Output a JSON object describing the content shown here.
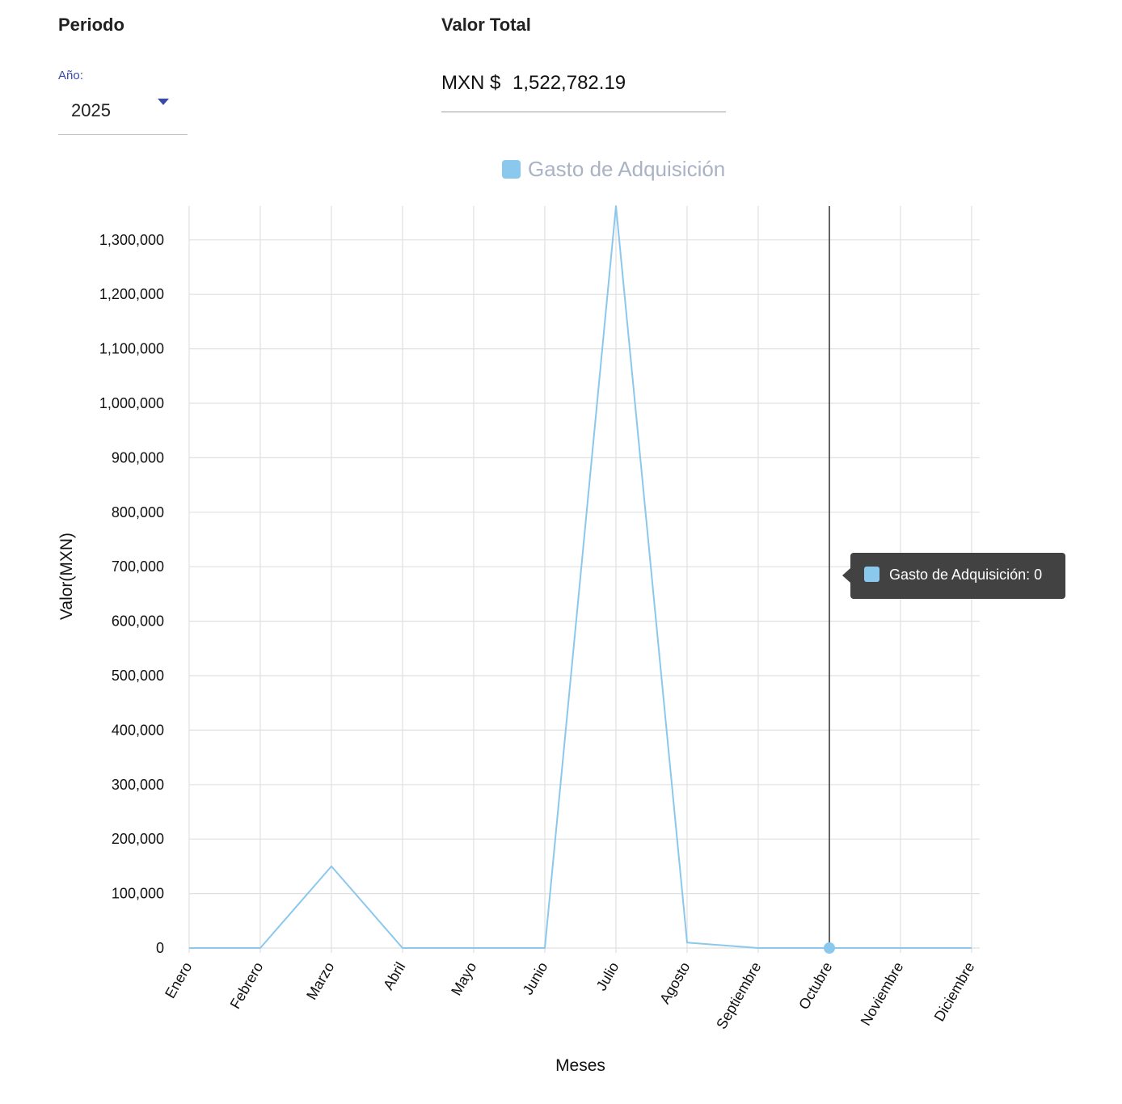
{
  "header": {
    "periodo_title": "Periodo",
    "year_label": "Año:",
    "year_value": "2025",
    "total_title": "Valor Total",
    "total_currency": "MXN $",
    "total_amount": "1,522,782.19"
  },
  "legend": {
    "label": "Gasto de Adquisición"
  },
  "tooltip": {
    "text": "Gasto de Adquisición: 0"
  },
  "colors": {
    "series": "#8bc8ed",
    "accent": "#3949ab",
    "grid": "#e0e0e0",
    "tooltip_bg": "#424242"
  },
  "chart_data": {
    "type": "line",
    "categories": [
      "Enero",
      "Febrero",
      "Marzo",
      "Abril",
      "Mayo",
      "Junio",
      "Julio",
      "Agosto",
      "Septiembre",
      "Octubre",
      "Noviembre",
      "Diciembre"
    ],
    "series": [
      {
        "name": "Gasto de Adquisición",
        "values": [
          0,
          0,
          150000,
          0,
          0,
          0,
          1362000,
          10000,
          0,
          0,
          0,
          0
        ]
      }
    ],
    "xlabel": "Meses",
    "ylabel": "Valor(MXN)",
    "ylim": [
      0,
      1362000
    ],
    "yticks": [
      0,
      100000,
      200000,
      300000,
      400000,
      500000,
      600000,
      700000,
      800000,
      900000,
      1000000,
      1100000,
      1200000,
      1300000
    ],
    "ytick_labels": [
      "0",
      "100,000",
      "200,000",
      "300,000",
      "400,000",
      "500,000",
      "600,000",
      "700,000",
      "800,000",
      "900,000",
      "1,000,000",
      "1,100,000",
      "1,200,000",
      "1,300,000"
    ],
    "grid": true,
    "legend_position": "top-center",
    "hovered_category": "Octubre"
  }
}
